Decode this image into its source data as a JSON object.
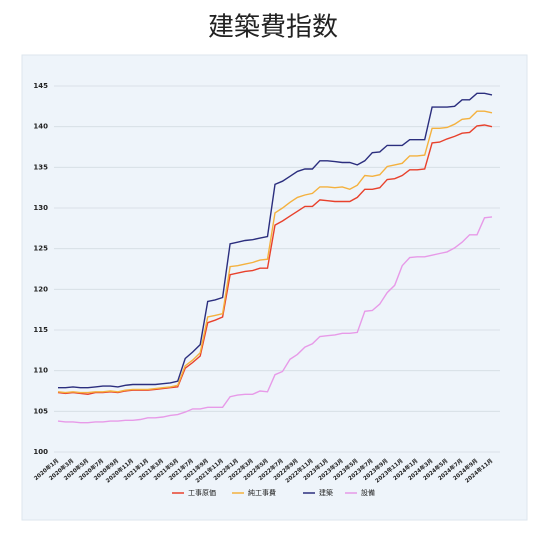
{
  "chart_data": {
    "type": "line",
    "title": "建築費指数",
    "categories": [
      "2020年1月",
      null,
      "2020年3月",
      null,
      "2020年5月",
      null,
      "2020年7月",
      null,
      "2020年9月",
      null,
      "2020年11月",
      null,
      "2021年1月",
      null,
      "2021年3月",
      null,
      "2021年5月",
      null,
      "2021年7月",
      null,
      "2021年9月",
      null,
      "2021年11月",
      null,
      "2022年1月",
      null,
      "2022年3月",
      null,
      "2022年5月",
      null,
      "2022年7月",
      null,
      "2022年9月",
      null,
      "2022年11月",
      null,
      "2023年1月",
      null,
      "2023年3月",
      null,
      "2023年5月",
      null,
      "2023年7月",
      null,
      "2023年9月",
      null,
      "2023年11月",
      null,
      "2024年1月",
      null,
      "2024年3月",
      null,
      "2024年5月",
      null,
      "2024年7月",
      null,
      "2024年9月",
      null,
      "2024年11月"
    ],
    "series": [
      {
        "name": "工事原価",
        "color": "#e8412c",
        "values": [
          107.3,
          107.2,
          107.3,
          107.2,
          107.1,
          107.3,
          107.3,
          107.4,
          107.3,
          107.5,
          107.6,
          107.6,
          107.6,
          107.7,
          107.8,
          107.9,
          108.0,
          110.3,
          111.0,
          111.8,
          115.9,
          116.2,
          116.6,
          121.8,
          122.0,
          122.2,
          122.3,
          122.6,
          122.6,
          127.9,
          128.4,
          129.0,
          129.6,
          130.2,
          130.2,
          131.0,
          130.9,
          130.8,
          130.8,
          130.8,
          131.3,
          132.3,
          132.3,
          132.5,
          133.5,
          133.6,
          134.0,
          134.7,
          134.7,
          134.8,
          138.0,
          138.1,
          138.5,
          138.8,
          139.2,
          139.3,
          140.1,
          140.2,
          140.0
        ]
      },
      {
        "name": "純工事費",
        "color": "#f4b13e",
        "values": [
          107.4,
          107.3,
          107.4,
          107.3,
          107.3,
          107.4,
          107.4,
          107.5,
          107.4,
          107.6,
          107.7,
          107.7,
          107.7,
          107.8,
          107.9,
          108.0,
          108.2,
          110.6,
          111.3,
          112.2,
          116.6,
          116.8,
          117.0,
          122.8,
          122.9,
          123.1,
          123.3,
          123.6,
          123.7,
          129.4,
          130.0,
          130.7,
          131.3,
          131.6,
          131.8,
          132.6,
          132.6,
          132.5,
          132.6,
          132.3,
          132.8,
          134.0,
          133.9,
          134.1,
          135.1,
          135.3,
          135.5,
          136.4,
          136.4,
          136.5,
          139.8,
          139.8,
          139.9,
          140.3,
          140.9,
          141.0,
          141.9,
          141.9,
          141.7
        ]
      },
      {
        "name": "建築",
        "color": "#2b2e7e",
        "values": [
          107.9,
          107.9,
          108.0,
          107.9,
          107.9,
          108.0,
          108.1,
          108.1,
          108.0,
          108.2,
          108.3,
          108.3,
          108.3,
          108.3,
          108.4,
          108.5,
          108.7,
          111.5,
          112.3,
          113.2,
          118.5,
          118.7,
          119.0,
          125.6,
          125.8,
          126.0,
          126.1,
          126.3,
          126.5,
          132.9,
          133.3,
          133.9,
          134.5,
          134.8,
          134.8,
          135.8,
          135.8,
          135.7,
          135.6,
          135.6,
          135.3,
          135.8,
          136.8,
          136.9,
          137.7,
          137.7,
          137.7,
          138.4,
          138.4,
          138.4,
          142.4,
          142.4,
          142.4,
          142.5,
          143.3,
          143.3,
          144.1,
          144.1,
          143.9
        ]
      },
      {
        "name": "設備",
        "color": "#e79ae8",
        "values": [
          103.8,
          103.7,
          103.7,
          103.6,
          103.6,
          103.7,
          103.7,
          103.8,
          103.8,
          103.9,
          103.9,
          104.0,
          104.2,
          104.2,
          104.3,
          104.5,
          104.6,
          104.9,
          105.3,
          105.3,
          105.5,
          105.5,
          105.5,
          106.8,
          107.0,
          107.1,
          107.1,
          107.5,
          107.4,
          109.5,
          109.9,
          111.4,
          112.0,
          112.9,
          113.3,
          114.2,
          114.3,
          114.4,
          114.6,
          114.6,
          114.7,
          117.3,
          117.4,
          118.2,
          119.6,
          120.5,
          122.9,
          123.9,
          124.0,
          124.0,
          124.2,
          124.4,
          124.6,
          125.1,
          125.8,
          126.7,
          126.7,
          128.8,
          128.9
        ]
      }
    ],
    "ylim": [
      100,
      145
    ],
    "yticks": [
      100,
      105,
      110,
      115,
      120,
      125,
      130,
      135,
      140,
      145
    ],
    "grid": true,
    "legend": "bottom"
  }
}
